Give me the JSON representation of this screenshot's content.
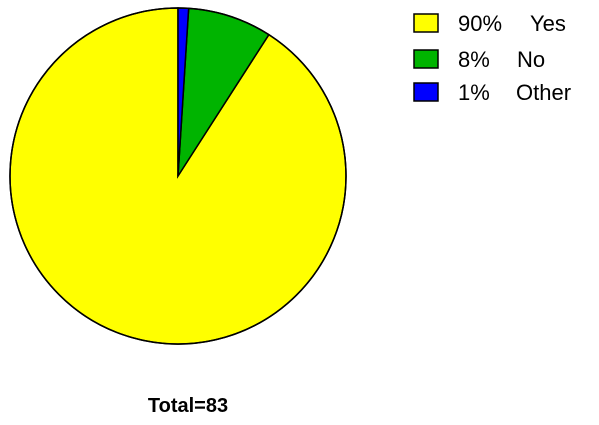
{
  "chart_data": {
    "type": "pie",
    "categories": [
      "Yes",
      "No",
      "Other"
    ],
    "values": [
      90,
      8,
      1
    ],
    "unit": "%",
    "legend": [
      {
        "percent": "90%",
        "label": "Yes",
        "color": "#ffff00"
      },
      {
        "percent": "8%",
        "label": "No",
        "color": "#00b400"
      },
      {
        "percent": "1%",
        "label": "Other",
        "color": "#0000ff"
      }
    ],
    "legend_position": "top-right",
    "start_angle_deg": 0,
    "direction": "counter-clockwise",
    "annotation": "Total=83"
  },
  "colors": {
    "yes": "#ffff00",
    "no": "#00b400",
    "other": "#0000ff",
    "outline": "#000000"
  }
}
